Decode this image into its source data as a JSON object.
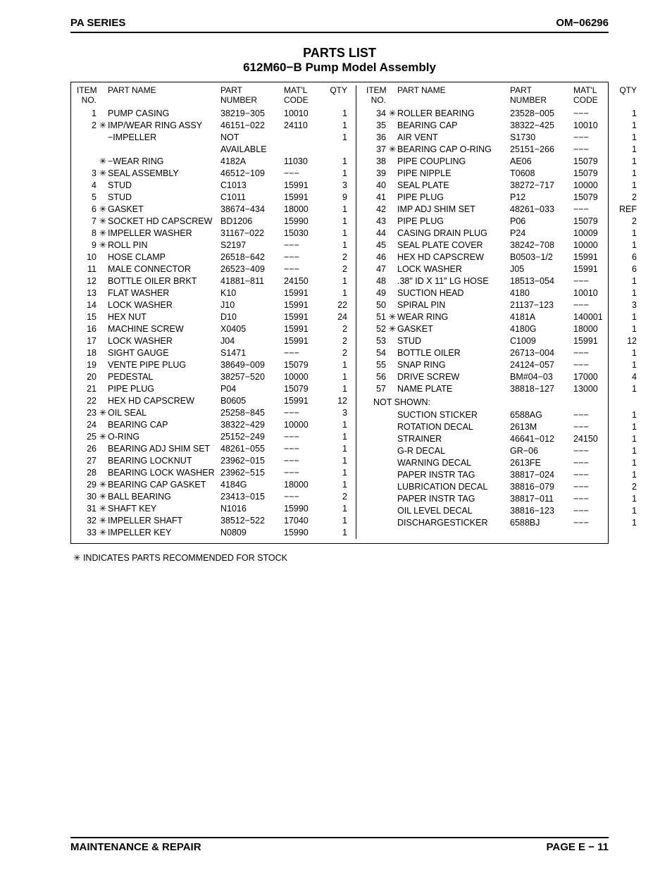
{
  "header": {
    "left": "PA SERIES",
    "right": "OM−06296"
  },
  "title": {
    "line1": "PARTS LIST",
    "line2": "612M60−B Pump Model Assembly"
  },
  "columns_header": {
    "item": "ITEM\nNO.",
    "name": "PART NAME",
    "part": "PART\nNUMBER",
    "matl": "MAT'L\nCODE",
    "qty": "QTY"
  },
  "left_rows": [
    {
      "no": "1",
      "star": "",
      "name": "PUMP CASING",
      "part": "38219−305",
      "matl": "10010",
      "qty": "1"
    },
    {
      "no": "2",
      "star": "✳",
      "name": "IMP/WEAR RING ASSY",
      "part": "46151−022",
      "matl": "24110",
      "qty": "1"
    },
    {
      "no": "",
      "star": "",
      "name": "−IMPELLER",
      "part": "NOT AVAILABLE",
      "matl": "",
      "qty": "1"
    },
    {
      "no": "",
      "star": "✳",
      "name": "−WEAR RING",
      "part": "4182A",
      "matl": "11030",
      "qty": "1"
    },
    {
      "no": "3",
      "star": "✳",
      "name": "SEAL ASSEMBLY",
      "part": "46512−109",
      "matl": "−−−",
      "qty": "1"
    },
    {
      "no": "4",
      "star": "",
      "name": "STUD",
      "part": "C1013",
      "matl": "15991",
      "qty": "3"
    },
    {
      "no": "5",
      "star": "",
      "name": "STUD",
      "part": "C1011",
      "matl": "15991",
      "qty": "9"
    },
    {
      "no": "6",
      "star": "✳",
      "name": "GASKET",
      "part": "38674−434",
      "matl": "18000",
      "qty": "1"
    },
    {
      "no": "7",
      "star": "✳",
      "name": "SOCKET HD CAPSCREW",
      "part": "BD1206",
      "matl": "15990",
      "qty": "1"
    },
    {
      "no": "8",
      "star": "✳",
      "name": "IMPELLER WASHER",
      "part": "31167−022",
      "matl": "15030",
      "qty": "1"
    },
    {
      "no": "9",
      "star": "✳",
      "name": "ROLL PIN",
      "part": "S2197",
      "matl": "−−−",
      "qty": "1"
    },
    {
      "no": "10",
      "star": "",
      "name": "HOSE CLAMP",
      "part": "26518−642",
      "matl": "−−−",
      "qty": "2"
    },
    {
      "no": "11",
      "star": "",
      "name": "MALE CONNECTOR",
      "part": "26523−409",
      "matl": "−−−",
      "qty": "2"
    },
    {
      "no": "12",
      "star": "",
      "name": "BOTTLE OILER BRKT",
      "part": "41881−811",
      "matl": "24150",
      "qty": "1"
    },
    {
      "no": "13",
      "star": "",
      "name": "FLAT WASHER",
      "part": "K10",
      "matl": "15991",
      "qty": "1"
    },
    {
      "no": "14",
      "star": "",
      "name": "LOCK WASHER",
      "part": "J10",
      "matl": "15991",
      "qty": "22"
    },
    {
      "no": "15",
      "star": "",
      "name": "HEX NUT",
      "part": "D10",
      "matl": "15991",
      "qty": "24"
    },
    {
      "no": "16",
      "star": "",
      "name": "MACHINE SCREW",
      "part": "X0405",
      "matl": "15991",
      "qty": "2"
    },
    {
      "no": "17",
      "star": "",
      "name": "LOCK WASHER",
      "part": "J04",
      "matl": "15991",
      "qty": "2"
    },
    {
      "no": "18",
      "star": "",
      "name": "SIGHT GAUGE",
      "part": "S1471",
      "matl": "−−−",
      "qty": "2"
    },
    {
      "no": "19",
      "star": "",
      "name": "VENTE PIPE PLUG",
      "part": "38649−009",
      "matl": "15079",
      "qty": "1"
    },
    {
      "no": "20",
      "star": "",
      "name": "PEDESTAL",
      "part": "38257−520",
      "matl": "10000",
      "qty": "1"
    },
    {
      "no": "21",
      "star": "",
      "name": "PIPE PLUG",
      "part": "P04",
      "matl": "15079",
      "qty": "1"
    },
    {
      "no": "22",
      "star": "",
      "name": "HEX HD CAPSCREW",
      "part": "B0605",
      "matl": "15991",
      "qty": "12"
    },
    {
      "no": "23",
      "star": "✳",
      "name": "OIL SEAL",
      "part": "25258−845",
      "matl": "−−−",
      "qty": "3"
    },
    {
      "no": "24",
      "star": "",
      "name": "BEARING CAP",
      "part": "38322−429",
      "matl": "10000",
      "qty": "1"
    },
    {
      "no": "25",
      "star": "✳",
      "name": "O-RING",
      "part": "25152−249",
      "matl": "−−−",
      "qty": "1"
    },
    {
      "no": "26",
      "star": "",
      "name": "BEARING ADJ SHIM SET",
      "part": "48261−055",
      "matl": "−−−",
      "qty": "1"
    },
    {
      "no": "27",
      "star": "",
      "name": "BEARING LOCKNUT",
      "part": "23962−015",
      "matl": "−−−",
      "qty": "1"
    },
    {
      "no": "28",
      "star": "",
      "name": "BEARING LOCK WASHER",
      "part": "23962−515",
      "matl": "−−−",
      "qty": "1"
    },
    {
      "no": "29",
      "star": "✳",
      "name": "BEARING CAP GASKET",
      "part": "4184G",
      "matl": "18000",
      "qty": "1"
    },
    {
      "no": "30",
      "star": "✳",
      "name": "BALL BEARING",
      "part": "23413−015",
      "matl": "−−−",
      "qty": "2"
    },
    {
      "no": "31",
      "star": "✳",
      "name": "SHAFT KEY",
      "part": "N1016",
      "matl": "15990",
      "qty": "1"
    },
    {
      "no": "32",
      "star": "✳",
      "name": "IMPELLER SHAFT",
      "part": "38512−522",
      "matl": "17040",
      "qty": "1"
    },
    {
      "no": "33",
      "star": "✳",
      "name": "IMPELLER KEY",
      "part": "N0809",
      "matl": "15990",
      "qty": "1"
    }
  ],
  "right_rows": [
    {
      "no": "34",
      "star": "✳",
      "name": "ROLLER BEARING",
      "part": "23528−005",
      "matl": "−−−",
      "qty": "1"
    },
    {
      "no": "35",
      "star": "",
      "name": "BEARING CAP",
      "part": "38322−425",
      "matl": "10010",
      "qty": "1"
    },
    {
      "no": "36",
      "star": "",
      "name": "AIR VENT",
      "part": "S1730",
      "matl": "−−−",
      "qty": "1"
    },
    {
      "no": "37",
      "star": "✳",
      "name": "BEARING CAP O-RING",
      "part": "25151−266",
      "matl": "−−−",
      "qty": "1"
    },
    {
      "no": "38",
      "star": "",
      "name": "PIPE COUPLING",
      "part": "AE06",
      "matl": "15079",
      "qty": "1"
    },
    {
      "no": "39",
      "star": "",
      "name": "PIPE NIPPLE",
      "part": "T0608",
      "matl": "15079",
      "qty": "1"
    },
    {
      "no": "40",
      "star": "",
      "name": "SEAL PLATE",
      "part": "38272−717",
      "matl": "10000",
      "qty": "1"
    },
    {
      "no": "41",
      "star": "",
      "name": "PIPE PLUG",
      "part": "P12",
      "matl": "15079",
      "qty": "2"
    },
    {
      "no": "42",
      "star": "",
      "name": "IMP ADJ SHIM SET",
      "part": "48261−033",
      "matl": "−−−",
      "qty": "REF"
    },
    {
      "no": "43",
      "star": "",
      "name": "PIPE PLUG",
      "part": "P06",
      "matl": "15079",
      "qty": "2"
    },
    {
      "no": "44",
      "star": "",
      "name": "CASING DRAIN PLUG",
      "part": "P24",
      "matl": "10009",
      "qty": "1"
    },
    {
      "no": "45",
      "star": "",
      "name": "SEAL PLATE COVER",
      "part": "38242−708",
      "matl": "10000",
      "qty": "1"
    },
    {
      "no": "46",
      "star": "",
      "name": "HEX HD CAPSCREW",
      "part": "B0503−1/2",
      "matl": "15991",
      "qty": "6"
    },
    {
      "no": "47",
      "star": "",
      "name": "LOCK WASHER",
      "part": "J05",
      "matl": "15991",
      "qty": "6"
    },
    {
      "no": "48",
      "star": "",
      "name": ".38\" ID X 11\" LG HOSE",
      "part": "18513−054",
      "matl": "−−−",
      "qty": "1"
    },
    {
      "no": "49",
      "star": "",
      "name": "SUCTION HEAD",
      "part": "4180",
      "matl": "10010",
      "qty": "1"
    },
    {
      "no": "50",
      "star": "",
      "name": "SPIRAL PIN",
      "part": "21137−123",
      "matl": "−−−",
      "qty": "3"
    },
    {
      "no": "51",
      "star": "✳",
      "name": "WEAR RING",
      "part": "4181A",
      "matl": "140001",
      "qty": "1"
    },
    {
      "no": "52",
      "star": "✳",
      "name": "GASKET",
      "part": "4180G",
      "matl": "18000",
      "qty": "1"
    },
    {
      "no": "53",
      "star": "",
      "name": "STUD",
      "part": "C1009",
      "matl": "15991",
      "qty": "12"
    },
    {
      "no": "54",
      "star": "",
      "name": "BOTTLE OILER",
      "part": "26713−004",
      "matl": "−−−",
      "qty": "1"
    },
    {
      "no": "55",
      "star": "",
      "name": "SNAP RING",
      "part": "24124−057",
      "matl": "−−−",
      "qty": "1"
    },
    {
      "no": "56",
      "star": "",
      "name": "DRIVE SCREW",
      "part": "BM#04−03",
      "matl": "17000",
      "qty": "4"
    },
    {
      "no": "57",
      "star": "",
      "name": "NAME PLATE",
      "part": "38818−127",
      "matl": "13000",
      "qty": "1"
    }
  ],
  "not_shown_label": "NOT SHOWN:",
  "not_shown_rows": [
    {
      "no": "",
      "star": "",
      "name": "SUCTION STICKER",
      "part": "6588AG",
      "matl": "−−−",
      "qty": "1"
    },
    {
      "no": "",
      "star": "",
      "name": "ROTATION DECAL",
      "part": "2613M",
      "matl": "−−−",
      "qty": "1"
    },
    {
      "no": "",
      "star": "",
      "name": "STRAINER",
      "part": "46641−012",
      "matl": "24150",
      "qty": "1"
    },
    {
      "no": "",
      "star": "",
      "name": "G-R DECAL",
      "part": "GR−06",
      "matl": "−−−",
      "qty": "1"
    },
    {
      "no": "",
      "star": "",
      "name": "WARNING DECAL",
      "part": "2613FE",
      "matl": "−−−",
      "qty": "1"
    },
    {
      "no": "",
      "star": "",
      "name": "PAPER INSTR TAG",
      "part": "38817−024",
      "matl": "−−−",
      "qty": "1"
    },
    {
      "no": "",
      "star": "",
      "name": "LUBRICATION DECAL",
      "part": "38816−079",
      "matl": "−−−",
      "qty": "2"
    },
    {
      "no": "",
      "star": "",
      "name": "PAPER INSTR TAG",
      "part": "38817−011",
      "matl": "−−−",
      "qty": "1"
    },
    {
      "no": "",
      "star": "",
      "name": "OIL LEVEL DECAL",
      "part": "38816−123",
      "matl": "−−−",
      "qty": "1"
    },
    {
      "no": "",
      "star": "",
      "name": "DISCHARGESTICKER",
      "part": "6588BJ",
      "matl": "−−−",
      "qty": "1"
    }
  ],
  "footnote": "✳ INDICATES PARTS RECOMMENDED FOR STOCK",
  "footer": {
    "left": "MAINTENANCE & REPAIR",
    "right": "PAGE E − 11"
  }
}
